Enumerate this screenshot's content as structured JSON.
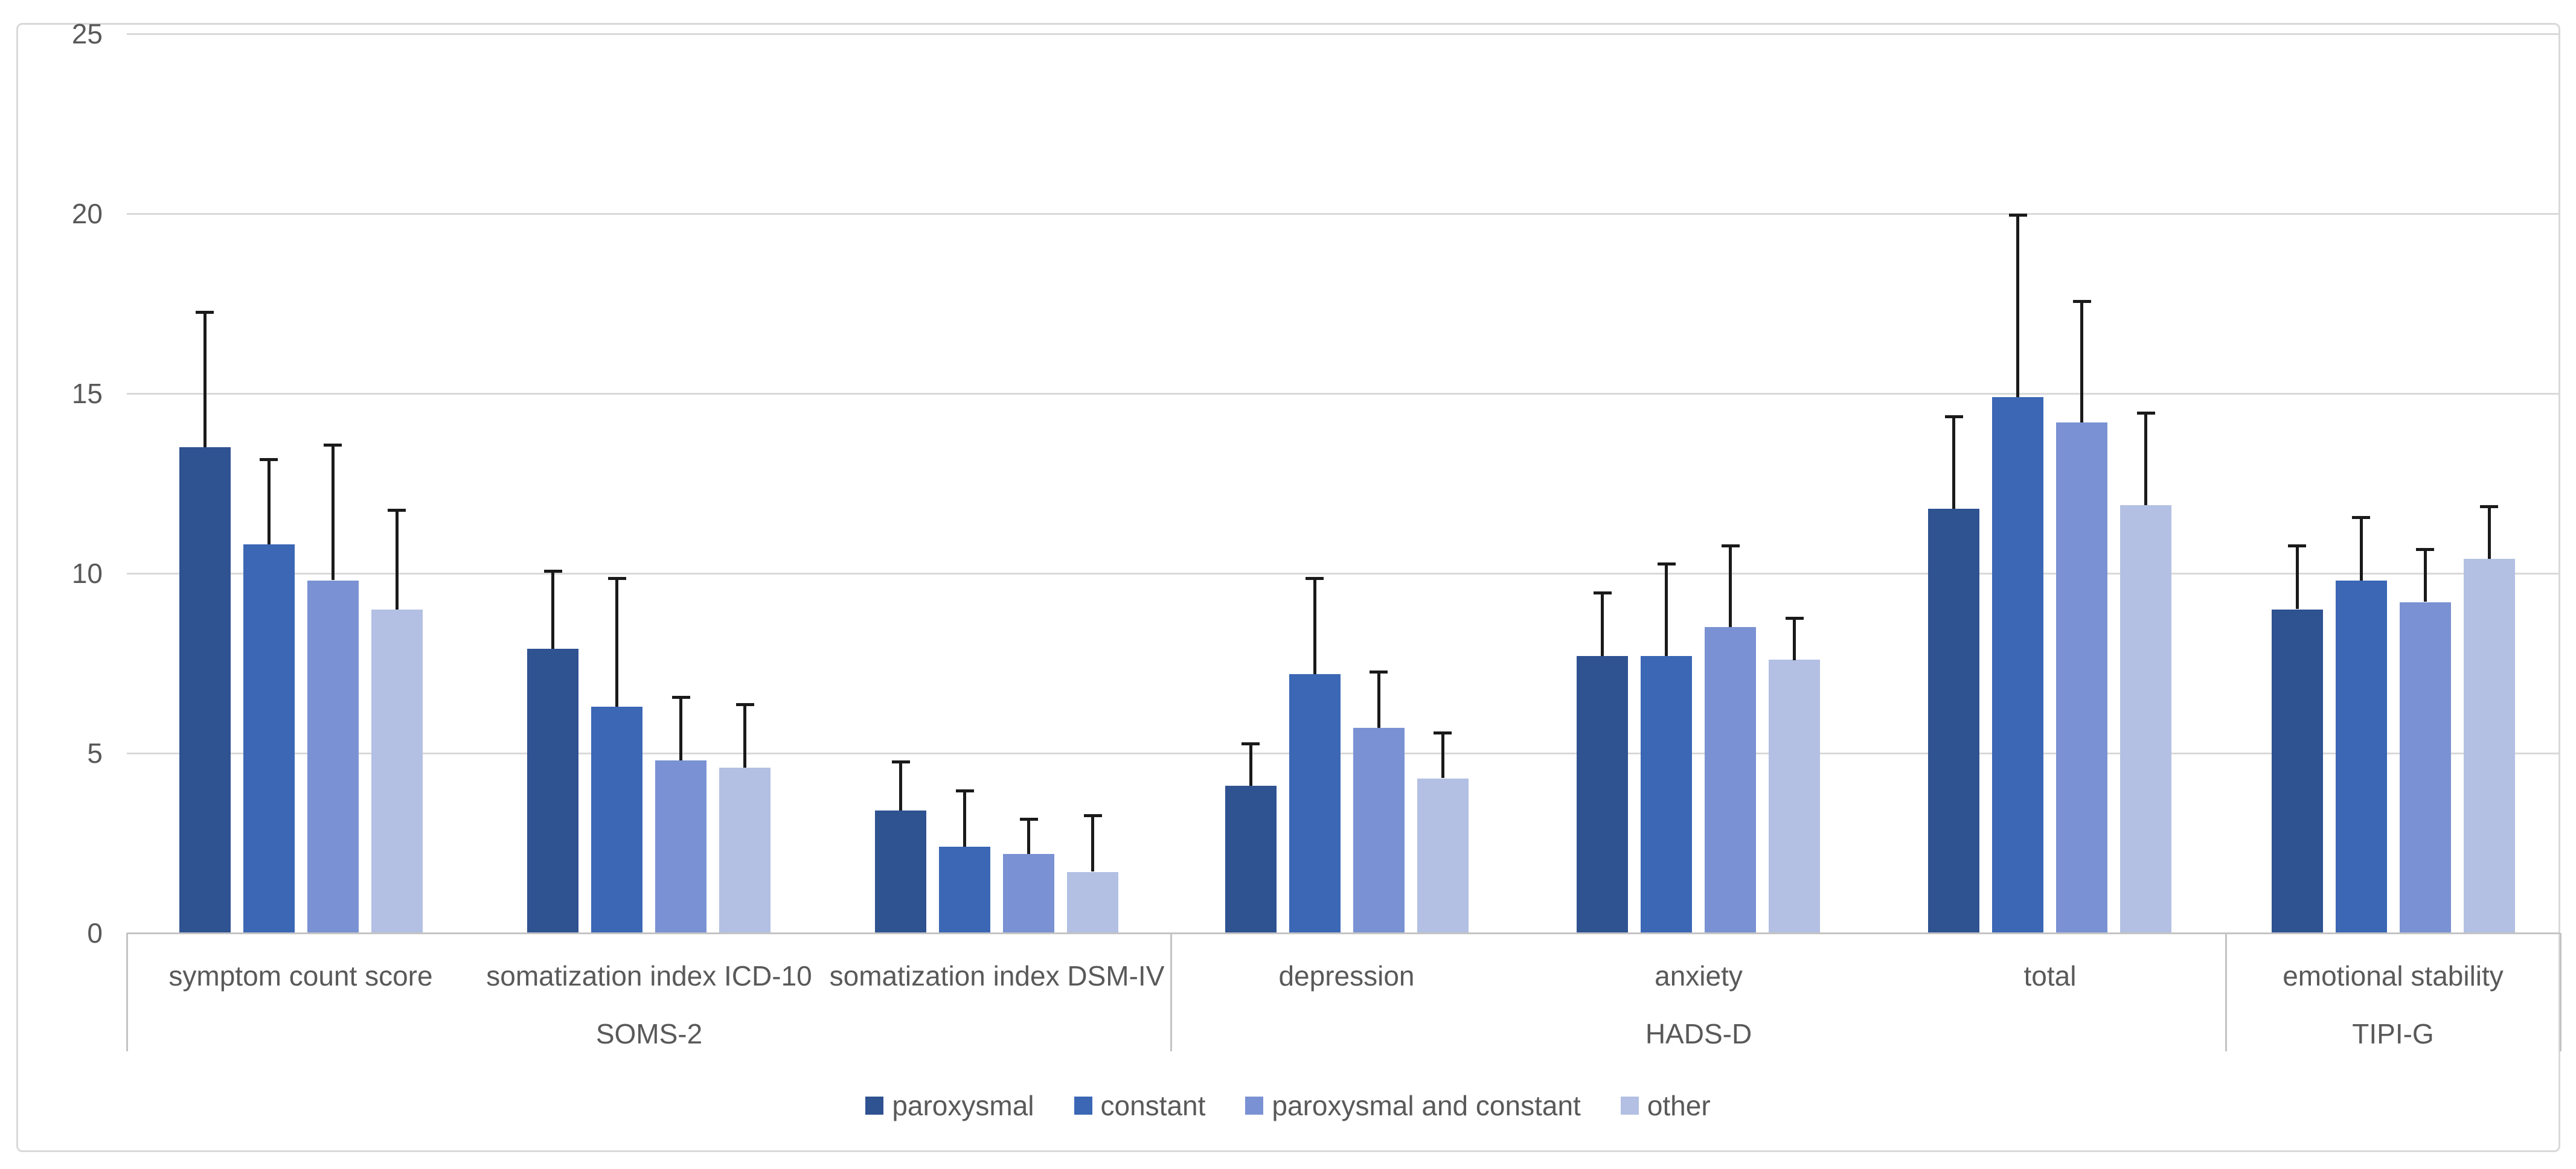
{
  "chart_data": {
    "type": "bar",
    "title": "",
    "xlabel": "",
    "ylabel": "",
    "ylim": [
      0,
      25
    ],
    "y_ticks": [
      0,
      5,
      10,
      15,
      20,
      25
    ],
    "grid": "horizontal",
    "legend_position": "bottom",
    "error_bars": "upper whisker with cap (+SD)",
    "groups": [
      {
        "label": "SOMS-2",
        "categories": [
          "symptom count score",
          "somatization index ICD-10",
          "somatization index DSM-IV"
        ]
      },
      {
        "label": "HADS-D",
        "categories": [
          "depression",
          "anxiety",
          "total"
        ]
      },
      {
        "label": "TIPI-G",
        "categories": [
          "emotional stability"
        ]
      }
    ],
    "categories": [
      "symptom count score",
      "somatization index ICD-10",
      "somatization index DSM-IV",
      "depression",
      "anxiety",
      "total",
      "emotional stability"
    ],
    "series": [
      {
        "name": "paroxysmal",
        "color": "#2F5291",
        "values": [
          13.5,
          7.9,
          3.4,
          4.1,
          7.7,
          11.8,
          9.0
        ],
        "errors": [
          3.8,
          2.2,
          1.4,
          1.2,
          1.8,
          2.6,
          1.8
        ]
      },
      {
        "name": "constant",
        "color": "#3B67B5",
        "values": [
          10.8,
          6.3,
          2.4,
          7.2,
          7.7,
          14.9,
          9.8
        ],
        "errors": [
          2.4,
          3.6,
          1.6,
          2.7,
          2.6,
          5.1,
          1.8
        ]
      },
      {
        "name": "paroxysmal and constant",
        "color": "#7A92D3",
        "values": [
          9.8,
          4.8,
          2.2,
          5.7,
          8.5,
          14.2,
          9.2
        ],
        "errors": [
          3.8,
          1.8,
          1.0,
          1.6,
          2.3,
          3.4,
          1.5
        ]
      },
      {
        "name": "other",
        "color": "#B3C0E3",
        "values": [
          9.0,
          4.6,
          1.7,
          4.3,
          7.6,
          11.9,
          10.4
        ],
        "errors": [
          2.8,
          1.8,
          1.6,
          1.3,
          1.2,
          2.6,
          1.5
        ]
      }
    ],
    "palette": {
      "gridline": "#D9D9D9",
      "axis_line": "#C4C4C4",
      "border": "#D9D9D9",
      "text": "#595959",
      "error_bar": "#1A1A1A",
      "background": "#FFFFFF"
    }
  },
  "axis": {
    "tick_labels": [
      "0",
      "5",
      "10",
      "15",
      "20",
      "25"
    ]
  },
  "legend": {
    "items": [
      "paroxysmal",
      "constant",
      "paroxysmal and constant",
      "other"
    ]
  }
}
